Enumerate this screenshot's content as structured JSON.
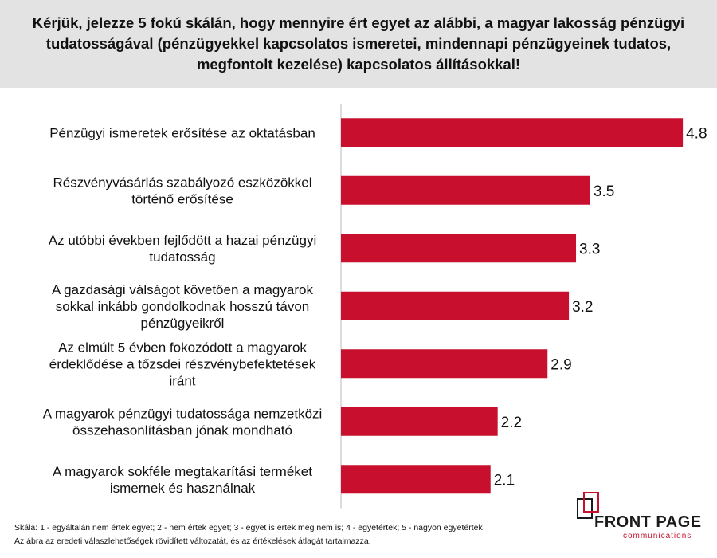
{
  "header": {
    "title": "Kérjük, jelezze 5 fokú skálán, hogy mennyire ért egyet az alábbi, a magyar lakosság pénzügyi tudatosságával (pénzügyekkel kapcsolatos ismeretei, mindennapi pénzügyeinek tudatos, megfontolt kezelése) kapcsolatos állításokkal!"
  },
  "chart_data": {
    "type": "bar",
    "orientation": "horizontal",
    "categories": [
      [
        "Pénzügyi ismeretek erősítése az oktatásban"
      ],
      [
        "Részvényvásárlás szabályozó eszközökkel",
        "történő erősítése"
      ],
      [
        "Az utóbbi években fejlődött a hazai pénzügyi",
        "tudatosság"
      ],
      [
        "A gazdasági válságot követően a magyarok",
        "sokkal inkább gondolkodnak hosszú távon",
        "pénzügyeikről"
      ],
      [
        "Az elmúlt 5 évben fokozódott a magyarok",
        "érdeklődése a tőzsdei részvénybefektetések",
        "iránt"
      ],
      [
        "A magyarok pénzügyi tudatossága nemzetközi",
        "összehasonlításban jónak mondható"
      ],
      [
        "A magyarok sokféle megtakarítási terméket",
        "ismernek és használnak"
      ]
    ],
    "values": [
      4.8,
      3.5,
      3.3,
      3.2,
      2.9,
      2.2,
      2.1
    ],
    "value_labels": [
      "4.8",
      "3.5",
      "3.3",
      "3.2",
      "2.9",
      "2.2",
      "2.1"
    ],
    "xlim": [
      0,
      5
    ],
    "grid": false,
    "bar_color": "#c8102e",
    "axis_color": "#bbbbbb"
  },
  "footnotes": {
    "scale": "Skála: 1 - egyáltalán nem értek egyet; 2 - nem értek egyet; 3 - egyet is értek meg nem is; 4 - egyetértek; 5 - nagyon egyetértek",
    "note": "Az ábra az eredeti válaszlehetőségek rövidített változatát, és az értékelések átlagát tartalmazza."
  },
  "logo": {
    "name": "FRONT PAGE",
    "sub": "communications",
    "colors": {
      "dark": "#1a1a1a",
      "accent": "#c8102e"
    }
  }
}
